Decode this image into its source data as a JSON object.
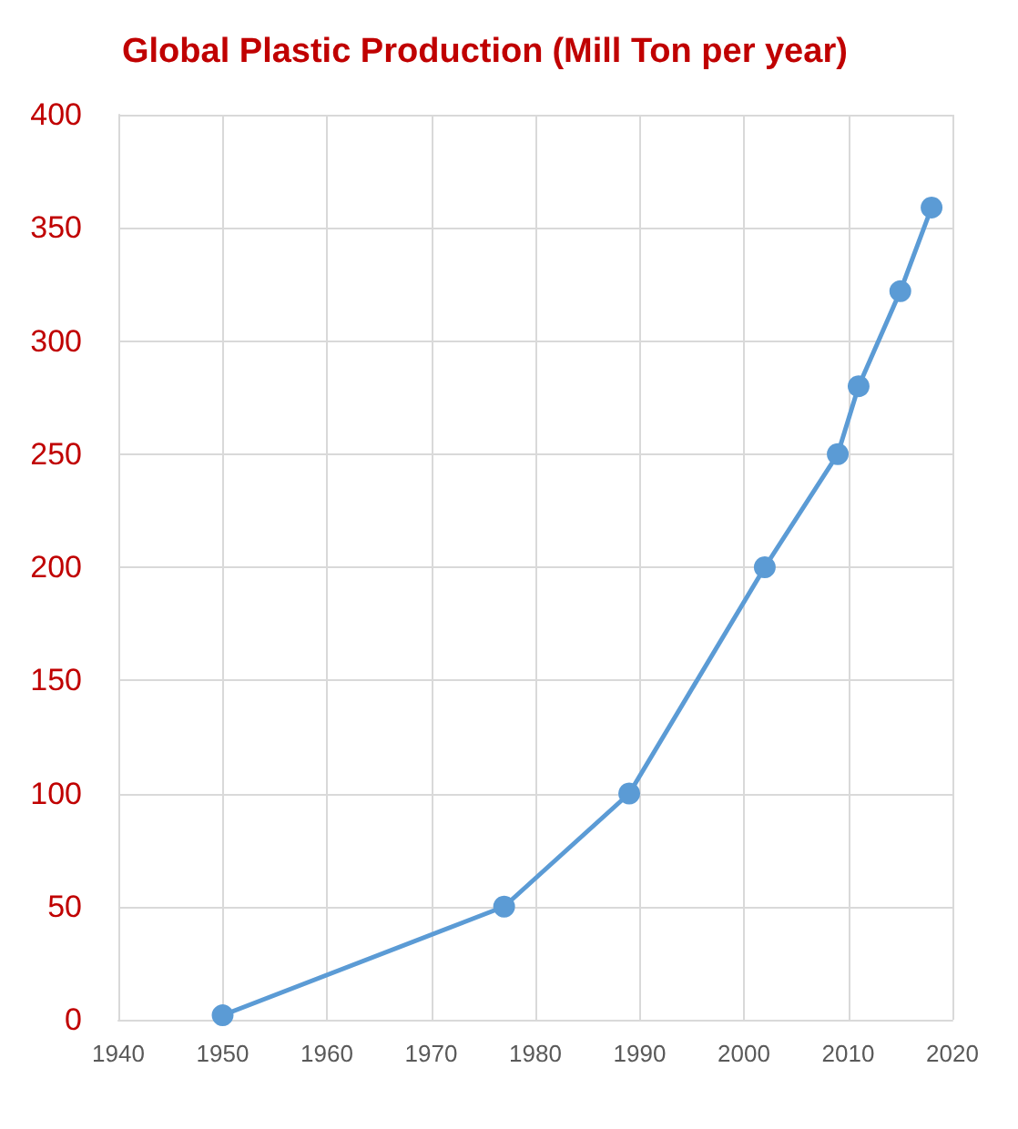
{
  "chart_data": {
    "type": "line",
    "title": "Global Plastic Production",
    "subtitle": "(Mill Ton per year)",
    "x": [
      1950,
      1977,
      1989,
      2002,
      2009,
      2011,
      2015,
      2018
    ],
    "series": [
      {
        "color": "#5b9bd5",
        "values": [
          2,
          50,
          100,
          200,
          250,
          280,
          322,
          359
        ]
      }
    ],
    "xlim": [
      1940,
      2020
    ],
    "xticks": [
      1940,
      1950,
      1960,
      1970,
      1980,
      1990,
      2000,
      2010,
      2020
    ],
    "ylim": [
      0,
      400
    ],
    "yticks": [
      0,
      50,
      100,
      150,
      200,
      250,
      300,
      350,
      400
    ],
    "grid": true,
    "marker": "circle",
    "line_style": "solid"
  }
}
